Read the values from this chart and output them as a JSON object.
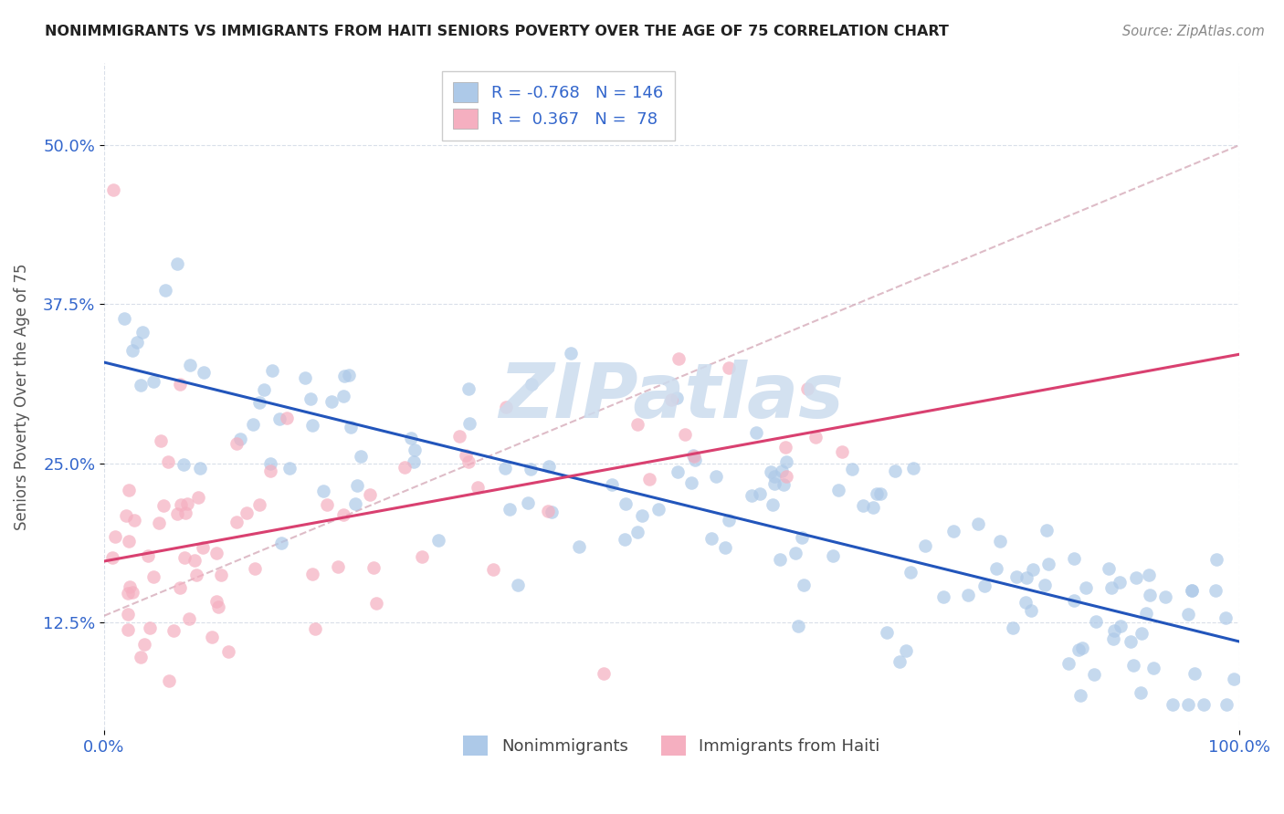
{
  "title": "NONIMMIGRANTS VS IMMIGRANTS FROM HAITI SENIORS POVERTY OVER THE AGE OF 75 CORRELATION CHART",
  "source": "Source: ZipAtlas.com",
  "ylabel": "Seniors Poverty Over the Age of 75",
  "yticks": [
    0.125,
    0.25,
    0.375,
    0.5
  ],
  "ytick_labels": [
    "12.5%",
    "25.0%",
    "37.5%",
    "50.0%"
  ],
  "xlim": [
    0.0,
    1.0
  ],
  "ylim": [
    0.04,
    0.565
  ],
  "blue_R": -0.768,
  "blue_N": 146,
  "pink_R": 0.367,
  "pink_N": 78,
  "blue_color": "#adc9e8",
  "blue_line_color": "#2255bb",
  "pink_color": "#f5afc0",
  "pink_line_color": "#d94070",
  "gray_dash_color": "#d0a0b0",
  "scatter_alpha": 0.7,
  "scatter_size": 110,
  "watermark": "ZIPatlas",
  "watermark_color": "#ccdcee",
  "legend_blue_label": "Nonimmigrants",
  "legend_pink_label": "Immigrants from Haiti",
  "blue_seed": 77,
  "pink_seed": 55
}
